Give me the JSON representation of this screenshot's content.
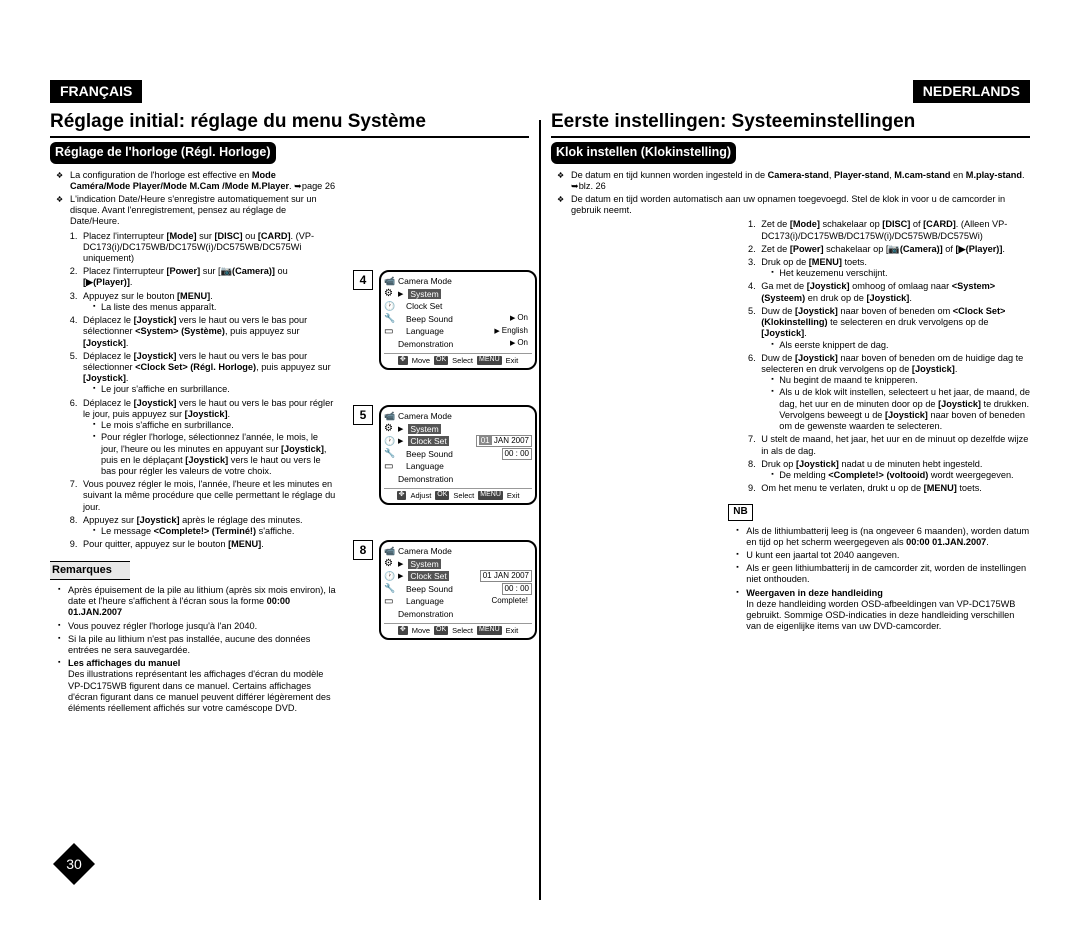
{
  "page": {
    "number": "30"
  },
  "left": {
    "lang": "FRANÇAIS",
    "title": "Réglage initial: réglage du menu Système",
    "subtitle": "Réglage de l'horloge (Régl. Horloge)",
    "intro": [
      "La configuration de l'horloge est effective en <b>Mode Caméra/Mode Player/Mode M.Cam /Mode M.Player</b>. ➥page 26",
      "L'indication Date/Heure s'enregistre automatiquement sur un disque. Avant l'enregistrement, pensez au réglage de Date/Heure."
    ],
    "steps": [
      "Placez l'interrupteur <b>[Mode]</b> sur <b>[DISC]</b> ou <b>[CARD]</b>. (VP-DC173(i)/DC175WB/DC175W(i)/DC575WB/DC575Wi uniquement)",
      "Placez l'interrupteur <b>[Power]</b> sur [📷<b>(Camera)]</b> ou <b>[▶(Player)]</b>.",
      "Appuyez sur le bouton <b>[MENU]</b>.<ul class='sub'><li>La liste des menus apparaît.</li></ul>",
      "Déplacez le <b>[Joystick]</b> vers le haut ou vers le bas pour sélectionner <b>&lt;System&gt; (Système)</b>, puis appuyez sur <b>[Joystick]</b>.",
      "Déplacez le <b>[Joystick]</b> vers le haut ou vers le bas pour sélectionner <b>&lt;Clock Set&gt; (Régl. Horloge)</b>, puis appuyez sur <b>[Joystick]</b>.<ul class='sub'><li>Le jour s'affiche en surbrillance.</li></ul>",
      "Déplacez le <b>[Joystick]</b> vers le haut ou vers le bas pour régler le jour, puis appuyez sur <b>[Joystick]</b>.<ul class='sub'><li>Le mois s'affiche en surbrillance.</li><li>Pour régler l'horloge, sélectionnez l'année, le mois, le jour, l'heure ou les minutes en appuyant sur <b>[Joystick]</b>, puis en le déplaçant <b>[Joystick]</b> vers le haut ou vers le bas pour régler les valeurs de votre choix.</li></ul>",
      "Vous pouvez régler le mois, l'année, l'heure et les minutes en suivant la même procédure que celle permettant le réglage du jour.",
      "Appuyez sur <b>[Joystick]</b> après le réglage des minutes.<ul class='sub'><li>Le message <b>&lt;Complete!&gt; (Terminé!)</b> s'affiche.</li></ul>",
      "Pour quitter, appuyez sur le bouton <b>[MENU]</b>."
    ],
    "notesHead": "Remarques",
    "notes": [
      "Après épuisement de la pile au lithium (après six mois environ), la date et l'heure s'affichent à l'écran sous la forme <b>00:00 01.JAN.2007</b>",
      "Vous pouvez régler l'horloge jusqu'à l'an 2040.",
      "Si la pile au lithium n'est pas installée, aucune des données entrées ne sera sauvegardée.",
      "<b>Les affichages du manuel</b><br>Des illustrations représentant les affichages d'écran du modèle VP-DC175WB figurent dans ce manuel. Certains affichages d'écran figurant dans ce manuel peuvent différer légèrement des éléments réellement affichés sur votre caméscope DVD."
    ]
  },
  "right": {
    "lang": "NEDERLANDS",
    "title": "Eerste instellingen: Systeeminstellingen",
    "subtitle": "Klok instellen (Klokinstelling)",
    "intro": [
      "De datum en tijd kunnen worden ingesteld in de <b>Camera-stand</b>, <b>Player-stand</b>, <b>M.cam-stand</b> en <b>M.play-stand</b>. ➥blz. 26",
      "De datum en tijd worden automatisch aan uw opnamen toegevoegd. Stel de klok in voor u de camcorder in gebruik neemt."
    ],
    "steps": [
      "Zet de <b>[Mode]</b> schakelaar op <b>[DISC]</b> of <b>[CARD]</b>. (Alleen VP-DC173(i)/DC175WB/DC175W(i)/DC575WB/DC575Wi)",
      "Zet de <b>[Power]</b> schakelaar op [📷<b>(Camera)]</b> of <b>[▶(Player)]</b>.",
      "Druk op de <b>[MENU]</b> toets.<ul class='sub'><li>Het keuzemenu verschijnt.</li></ul>",
      "Ga met de <b>[Joystick]</b> omhoog of omlaag naar <b>&lt;System&gt; (Systeem)</b> en druk op de <b>[Joystick]</b>.",
      "Duw de <b>[Joystick]</b> naar boven of beneden om <b>&lt;Clock Set&gt; (Klokinstelling)</b> te selecteren en druk vervolgens op de <b>[Joystick]</b>.<ul class='sub'><li>Als eerste knippert de dag.</li></ul>",
      "Duw de <b>[Joystick]</b> naar boven of beneden om de huidige dag te selecteren en druk vervolgens op de <b>[Joystick]</b>.<ul class='sub'><li>Nu begint de maand te knipperen.</li><li>Als u de klok wilt instellen, selecteert u het jaar, de maand, de dag, het uur en de minuten door op de <b>[Joystick]</b> te drukken. Vervolgens beweegt u de <b>[Joystick]</b> naar boven of beneden om de gewenste waarden te selecteren.</li></ul>",
      "U stelt de maand, het jaar, het uur en de minuut op dezelfde wijze in als de dag.",
      "Druk op <b>[Joystick]</b> nadat u de minuten hebt ingesteld.<ul class='sub'><li>De melding <b>&lt;Complete!&gt; (voltooid)</b> wordt weergegeven.</li></ul>",
      "Om het menu te verlaten, drukt u op de <b>[MENU]</b> toets."
    ],
    "notesHead": "NB",
    "notes": [
      "Als de lithiumbatterij leeg is (na ongeveer 6 maanden), worden datum en tijd op het scherm weergegeven als <b>00:00 01.JAN.2007</b>.",
      "U kunt een jaartal tot 2040 aangeven.",
      "Als er geen lithiumbatterij in de camcorder zit, worden de instellingen niet onthouden.",
      "<b>Weergaven in deze handleiding</b><br>In deze handleiding worden OSD-afbeeldingen van VP-DC175WB gebruikt. Sommige OSD-indicaties in deze handleiding verschillen van de eigenlijke items van uw DVD-camcorder."
    ]
  },
  "lcd": {
    "mode": "Camera Mode",
    "system": "System",
    "clockSet": "Clock Set",
    "beep": "Beep Sound",
    "language": "Language",
    "demo": "Demonstration",
    "on": "On",
    "english": "English",
    "move": "Move",
    "adjust": "Adjust",
    "ok": "OK",
    "select": "Select",
    "menu": "MENU",
    "exit": "Exit",
    "date1": "01",
    "date1b": "JAN  2007",
    "time": "00 : 00",
    "date2": "01  JAN  2007",
    "complete": "Complete!"
  }
}
